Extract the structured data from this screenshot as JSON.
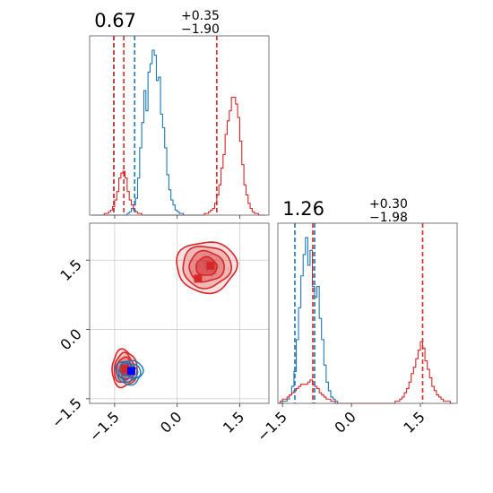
{
  "chart_data": {
    "type": "corner",
    "params": [
      {
        "title_value": "0.67",
        "title_plus": "+0.35",
        "title_minus": "−1.90",
        "range": [
          -2.1,
          2.2
        ]
      },
      {
        "title_value": "1.26",
        "title_plus": "+0.30",
        "title_minus": "−1.98",
        "range": [
          -1.6,
          2.3
        ]
      }
    ],
    "ticks": [
      -1.5,
      0.0,
      1.5
    ],
    "tick_labels": [
      "−1.5",
      "0.0",
      "1.5"
    ],
    "colors": {
      "blue": "#1f77b4",
      "red": "#d62728"
    },
    "series": [
      {
        "name": "blue",
        "color": "#1f77b4",
        "hist_p1": {
          "bin_start": -2.05,
          "bin_width": 0.05,
          "counts": [
            0,
            0,
            0,
            0,
            0,
            0,
            0,
            0,
            0,
            0,
            0,
            0,
            0,
            0,
            0,
            0,
            0,
            1,
            2,
            4,
            6,
            10,
            22,
            40,
            55,
            74,
            62,
            85,
            90,
            98,
            95,
            80,
            82,
            60,
            52,
            40,
            24,
            15,
            9,
            6,
            3,
            2,
            1,
            1,
            0,
            0
          ]
        },
        "hist_p2": {
          "bin_start": -1.55,
          "bin_width": 0.05,
          "counts": [
            0,
            1,
            1,
            2,
            4,
            8,
            15,
            30,
            45,
            60,
            70,
            78,
            65,
            72,
            55,
            50,
            55,
            40,
            30,
            18,
            10,
            6,
            3,
            2,
            1,
            0,
            0
          ]
        },
        "quantiles_p1": [
          -1.52,
          -1.02
        ],
        "quantiles_p2": [
          -1.23,
          -0.8
        ],
        "marker": [
          -1.1,
          -0.9
        ]
      },
      {
        "name": "red",
        "color": "#d62728",
        "hist_p1": {
          "bin_start": -1.8,
          "bin_width": 0.05,
          "counts": [
            0,
            1,
            1,
            2,
            3,
            5,
            9,
            14,
            22,
            25,
            26,
            22,
            14,
            9,
            6,
            3,
            2,
            1,
            1,
            0,
            0,
            0,
            0,
            0,
            0,
            0,
            0,
            0,
            0,
            0,
            0,
            0,
            0,
            0,
            0,
            0,
            0,
            0,
            0,
            0,
            0,
            0,
            0,
            0,
            0,
            0,
            0,
            0,
            0,
            1,
            1,
            2,
            3,
            4,
            7,
            12,
            18,
            28,
            36,
            48,
            56,
            62,
            70,
            70,
            66,
            58,
            44,
            30,
            18,
            12,
            7,
            4,
            2,
            1,
            1,
            0,
            0,
            0
          ]
        },
        "hist_p2": {
          "bin_start": -1.6,
          "bin_width": 0.05,
          "counts": [
            0,
            1,
            2,
            2,
            3,
            4,
            5,
            6,
            7,
            8,
            9,
            9,
            9,
            10,
            11,
            9,
            8,
            7,
            5,
            4,
            3,
            2,
            2,
            1,
            1,
            0,
            0,
            0,
            0,
            0,
            0,
            0,
            0,
            0,
            0,
            0,
            0,
            0,
            0,
            0,
            0,
            0,
            0,
            0,
            0,
            0,
            0,
            0,
            0,
            0,
            0,
            1,
            1,
            2,
            3,
            5,
            7,
            10,
            14,
            17,
            21,
            25,
            29,
            26,
            20,
            16,
            12,
            8,
            6,
            4,
            3,
            2,
            1,
            1,
            1,
            0
          ]
        },
        "quantiles_p1": [
          -1.52,
          -1.28,
          0.95
        ],
        "quantiles_p2": [
          -0.84,
          1.55
        ],
        "markers": [
          [
            0.5,
            1.1
          ],
          [
            0.8,
            1.38
          ],
          [
            -1.25,
            -0.85
          ]
        ]
      }
    ],
    "grid": true
  }
}
